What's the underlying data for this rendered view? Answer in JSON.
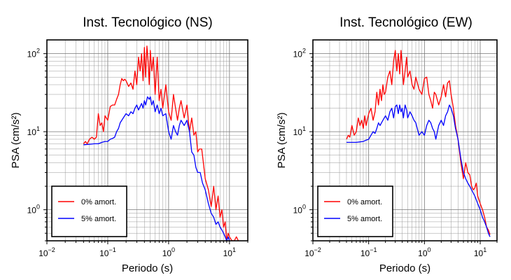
{
  "chart_data": [
    {
      "type": "line",
      "title": "Inst. Tecnológico (NS)",
      "xlabel": "Periodo (s)",
      "ylabel": "PSA (cm/s²)",
      "xscale": "log",
      "yscale": "log",
      "xlim": [
        0.01,
        20
      ],
      "ylim": [
        0.4,
        150
      ],
      "grid": true,
      "legend_position": "bottom-left",
      "x_ticks": [
        {
          "value": 0.01,
          "base": "10",
          "exp": "−2"
        },
        {
          "value": 0.1,
          "base": "10",
          "exp": "−1"
        },
        {
          "value": 1,
          "base": "10",
          "exp": "0"
        },
        {
          "value": 10,
          "base": "10",
          "exp": "1"
        }
      ],
      "y_ticks": [
        {
          "value": 1,
          "base": "10",
          "exp": "0"
        },
        {
          "value": 10,
          "base": "10",
          "exp": "1"
        },
        {
          "value": 100,
          "base": "10",
          "exp": "2"
        }
      ],
      "series": [
        {
          "name": "0% amort.",
          "color": "#ff0000",
          "x": [
            0.04,
            0.043,
            0.046,
            0.05,
            0.055,
            0.06,
            0.065,
            0.07,
            0.075,
            0.08,
            0.085,
            0.09,
            0.1,
            0.11,
            0.12,
            0.13,
            0.14,
            0.15,
            0.16,
            0.17,
            0.18,
            0.19,
            0.2,
            0.22,
            0.24,
            0.26,
            0.28,
            0.3,
            0.32,
            0.34,
            0.36,
            0.38,
            0.4,
            0.42,
            0.44,
            0.46,
            0.48,
            0.5,
            0.53,
            0.56,
            0.6,
            0.65,
            0.7,
            0.75,
            0.8,
            0.9,
            1.0,
            1.1,
            1.2,
            1.3,
            1.4,
            1.5,
            1.6,
            1.8,
            2.0,
            2.2,
            2.4,
            2.6,
            2.8,
            3.0,
            3.2,
            3.5,
            3.8,
            4.0,
            4.5,
            5.0,
            5.5,
            6.0,
            6.5,
            7.0,
            7.5,
            8.0,
            8.5,
            9.0,
            9.5,
            10.0,
            11.0,
            12.0,
            13.0,
            14.0,
            15.0
          ],
          "y": [
            7.0,
            7.5,
            7.0,
            8.0,
            8.5,
            8.0,
            8.5,
            17.0,
            12.0,
            13.0,
            10.0,
            16.0,
            14.0,
            21.0,
            22.0,
            22.0,
            26.0,
            30.0,
            40.0,
            48.0,
            45.0,
            47.0,
            45.0,
            38.0,
            42.0,
            35.0,
            60.0,
            40.0,
            90.0,
            60.0,
            100.0,
            45.0,
            120.0,
            50.0,
            125.0,
            80.0,
            40.0,
            110.0,
            60.0,
            90.0,
            30.0,
            90.0,
            25.0,
            35.0,
            20.0,
            40.0,
            18.0,
            14.0,
            30.0,
            20.0,
            14.0,
            20.0,
            25.0,
            15.0,
            22.0,
            10.0,
            15.0,
            9.0,
            10.0,
            5.5,
            6.0,
            6.0,
            3.5,
            2.5,
            1.8,
            1.1,
            2.0,
            1.0,
            1.5,
            0.8,
            1.0,
            0.6,
            0.7,
            0.4,
            0.5,
            0.45,
            0.4,
            0.4,
            0.45,
            0.4,
            0.38
          ]
        },
        {
          "name": "5% amort.",
          "color": "#0000ff",
          "x": [
            0.04,
            0.05,
            0.06,
            0.07,
            0.08,
            0.09,
            0.1,
            0.11,
            0.12,
            0.13,
            0.14,
            0.15,
            0.16,
            0.18,
            0.2,
            0.22,
            0.24,
            0.26,
            0.28,
            0.3,
            0.32,
            0.34,
            0.36,
            0.38,
            0.4,
            0.42,
            0.45,
            0.48,
            0.5,
            0.53,
            0.56,
            0.6,
            0.65,
            0.7,
            0.75,
            0.8,
            0.9,
            1.0,
            1.1,
            1.2,
            1.3,
            1.4,
            1.5,
            1.6,
            1.8,
            2.0,
            2.2,
            2.4,
            2.6,
            2.8,
            3.0,
            3.3,
            3.6,
            4.0,
            4.5,
            5.0,
            5.5,
            6.0,
            6.5,
            7.0,
            7.5,
            8.0,
            8.5,
            9.0,
            9.5,
            10.0,
            11.0,
            12.0,
            13.0,
            14.0
          ],
          "y": [
            6.8,
            6.9,
            7.0,
            7.0,
            7.3,
            7.5,
            7.5,
            8.0,
            8.2,
            8.5,
            10.0,
            11.0,
            13.0,
            15.0,
            17.0,
            16.0,
            18.0,
            17.0,
            20.0,
            22.0,
            19.0,
            21.0,
            23.0,
            20.0,
            25.0,
            22.0,
            28.0,
            26.0,
            28.0,
            22.0,
            25.0,
            18.0,
            22.0,
            17.0,
            20.0,
            16.0,
            17.0,
            10.0,
            8.0,
            12.0,
            10.0,
            9.0,
            12.0,
            14.0,
            12.0,
            14.0,
            10.0,
            5.5,
            5.0,
            3.5,
            3.0,
            3.0,
            2.2,
            1.8,
            1.2,
            0.9,
            0.8,
            0.65,
            0.7,
            0.6,
            0.55,
            0.5,
            0.45,
            0.4,
            0.45,
            0.4,
            0.38,
            0.36,
            0.35,
            0.35
          ]
        }
      ]
    },
    {
      "type": "line",
      "title": "Inst. Tecnológico (EW)",
      "xlabel": "Periodo (s)",
      "ylabel": "PSA (cm/s²)",
      "xscale": "log",
      "yscale": "log",
      "xlim": [
        0.01,
        20
      ],
      "ylim": [
        0.4,
        150
      ],
      "grid": true,
      "legend_position": "bottom-left",
      "x_ticks": [
        {
          "value": 0.01,
          "base": "10",
          "exp": "−2"
        },
        {
          "value": 0.1,
          "base": "10",
          "exp": "−1"
        },
        {
          "value": 1,
          "base": "10",
          "exp": "0"
        },
        {
          "value": 10,
          "base": "10",
          "exp": "1"
        }
      ],
      "y_ticks": [
        {
          "value": 1,
          "base": "10",
          "exp": "0"
        },
        {
          "value": 10,
          "base": "10",
          "exp": "1"
        },
        {
          "value": 100,
          "base": "10",
          "exp": "2"
        }
      ],
      "series": [
        {
          "name": "0% amort.",
          "color": "#ff0000",
          "x": [
            0.04,
            0.043,
            0.046,
            0.05,
            0.055,
            0.06,
            0.065,
            0.07,
            0.075,
            0.08,
            0.085,
            0.09,
            0.1,
            0.11,
            0.12,
            0.13,
            0.14,
            0.15,
            0.16,
            0.17,
            0.18,
            0.19,
            0.2,
            0.22,
            0.24,
            0.26,
            0.28,
            0.3,
            0.32,
            0.34,
            0.36,
            0.38,
            0.4,
            0.42,
            0.45,
            0.48,
            0.5,
            0.55,
            0.6,
            0.65,
            0.7,
            0.8,
            0.9,
            1.0,
            1.1,
            1.2,
            1.3,
            1.4,
            1.5,
            1.6,
            1.8,
            2.0,
            2.2,
            2.4,
            2.6,
            2.8,
            3.0,
            3.3,
            3.6,
            4.0,
            4.5,
            5.0,
            5.5,
            6.0,
            6.5,
            7.0,
            7.5,
            8.0,
            8.5,
            9.0,
            10.0,
            11.0,
            12.0,
            13.0,
            14.0,
            15.0
          ],
          "y": [
            8.0,
            9.0,
            8.5,
            12.0,
            9.0,
            10.0,
            15.0,
            12.0,
            14.0,
            11.0,
            16.0,
            12.0,
            17.0,
            20.0,
            14.0,
            18.0,
            32.0,
            22.0,
            35.0,
            25.0,
            40.0,
            30.0,
            32.0,
            50.0,
            60.0,
            40.0,
            80.0,
            110.0,
            60.0,
            100.0,
            55.0,
            110.0,
            70.0,
            40.0,
            60.0,
            90.0,
            50.0,
            60.0,
            40.0,
            35.0,
            50.0,
            35.0,
            30.0,
            48.0,
            50.0,
            30.0,
            25.0,
            20.0,
            32.0,
            30.0,
            22.0,
            28.0,
            40.0,
            28.0,
            42.0,
            45.0,
            30.0,
            20.0,
            12.0,
            8.0,
            4.0,
            2.5,
            4.0,
            3.0,
            2.8,
            2.0,
            1.8,
            1.9,
            2.2,
            1.5,
            1.2,
            1.0,
            0.8,
            0.6,
            0.55,
            0.48
          ]
        },
        {
          "name": "5% amort.",
          "color": "#0000ff",
          "x": [
            0.04,
            0.05,
            0.06,
            0.07,
            0.08,
            0.09,
            0.1,
            0.11,
            0.12,
            0.13,
            0.14,
            0.15,
            0.16,
            0.18,
            0.2,
            0.22,
            0.24,
            0.26,
            0.28,
            0.3,
            0.32,
            0.34,
            0.36,
            0.38,
            0.4,
            0.42,
            0.45,
            0.48,
            0.5,
            0.55,
            0.6,
            0.65,
            0.7,
            0.8,
            0.9,
            1.0,
            1.1,
            1.2,
            1.3,
            1.4,
            1.5,
            1.6,
            1.8,
            2.0,
            2.2,
            2.4,
            2.6,
            2.8,
            3.0,
            3.3,
            3.6,
            4.0,
            4.5,
            5.0,
            5.5,
            6.0,
            6.5,
            7.0,
            8.0,
            9.0,
            10.0,
            11.0,
            12.0,
            13.0,
            14.0,
            15.0
          ],
          "y": [
            7.3,
            7.3,
            7.3,
            7.4,
            7.5,
            7.8,
            8.0,
            9.0,
            10.0,
            9.5,
            11.0,
            13.0,
            12.0,
            14.0,
            16.0,
            14.0,
            18.0,
            20.0,
            15.0,
            21.0,
            22.0,
            17.0,
            22.0,
            18.0,
            20.0,
            15.0,
            22.0,
            19.0,
            15.0,
            18.0,
            16.0,
            14.0,
            13.0,
            9.0,
            10.0,
            9.0,
            12.0,
            14.0,
            13.0,
            11.0,
            10.0,
            8.0,
            12.0,
            14.0,
            12.0,
            16.0,
            18.0,
            22.0,
            20.0,
            16.0,
            11.0,
            8.0,
            4.5,
            3.0,
            2.5,
            2.2,
            2.0,
            1.8,
            1.5,
            1.2,
            1.0,
            0.8,
            0.7,
            0.6,
            0.5,
            0.45
          ]
        }
      ]
    }
  ]
}
